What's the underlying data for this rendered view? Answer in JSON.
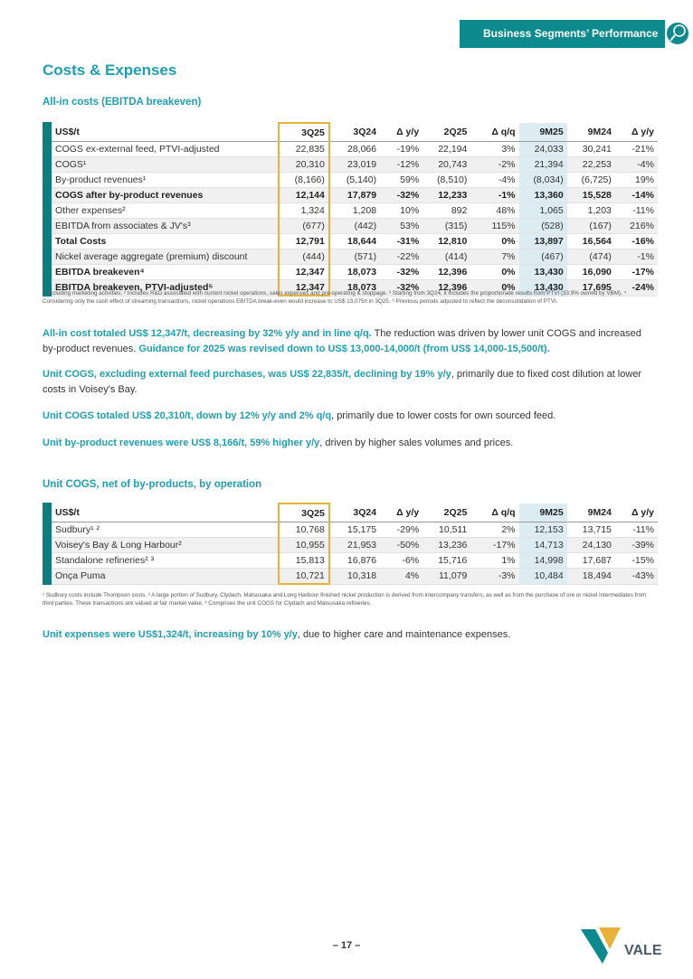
{
  "header": {
    "tag": "Business Segments’ Performance"
  },
  "title": "Costs & Expenses",
  "section1": {
    "subtitle": "All-in costs (EBITDA breakeven)",
    "table": {
      "columns": [
        "US$/t",
        "3Q25",
        "3Q24",
        "Δ y/y",
        "2Q25",
        "Δ q/q",
        "9M25",
        "9M24",
        "Δ y/y"
      ],
      "rows": [
        {
          "cells": [
            "COGS ex-external feed, PTVI-adjusted",
            "22,835",
            "28,066",
            "-19%",
            "22,194",
            "3%",
            "24,033",
            "30,241",
            "-21%"
          ]
        },
        {
          "cells": [
            "COGS¹",
            "20,310",
            "23,019",
            "-12%",
            "20,743",
            "-2%",
            "21,394",
            "22,253",
            "-4%"
          ]
        },
        {
          "cells": [
            "By-product revenues¹",
            "(8,166)",
            "(5,140)",
            "59%",
            "(8,510)",
            "-4%",
            "(8,034)",
            "(6,725)",
            "19%"
          ]
        },
        {
          "cells": [
            "COGS after by-product revenues",
            "12,144",
            "17,879",
            "-32%",
            "12,233",
            "-1%",
            "13,360",
            "15,528",
            "-14%"
          ],
          "bold": true
        },
        {
          "cells": [
            "Other expenses²",
            "1,324",
            "1,208",
            "10%",
            "892",
            "48%",
            "1,065",
            "1,203",
            "-11%"
          ]
        },
        {
          "cells": [
            "EBITDA from associates & JV's³",
            "(677)",
            "(442)",
            "53%",
            "(315)",
            "115%",
            "(528)",
            "(167)",
            "216%"
          ]
        },
        {
          "cells": [
            "Total Costs",
            "12,791",
            "18,644",
            "-31%",
            "12,810",
            "0%",
            "13,897",
            "16,564",
            "-16%"
          ],
          "bold": true
        },
        {
          "cells": [
            "Nickel average aggregate (premium) discount",
            "(444)",
            "(571)",
            "-22%",
            "(414)",
            "7%",
            "(467)",
            "(474)",
            "-1%"
          ]
        },
        {
          "cells": [
            "EBITDA breakeven⁴",
            "12,347",
            "18,073",
            "-32%",
            "12,396",
            "0%",
            "13,430",
            "16,090",
            "-17%"
          ],
          "bold": true
        },
        {
          "cells": [
            "EBITDA breakeven, PTVI-adjusted⁵",
            "12,347",
            "18,073",
            "-32%",
            "12,396",
            "0%",
            "13,430",
            "17,695",
            "-24%"
          ],
          "bold": true
        }
      ]
    },
    "footnote": "¹ Excluding marketing activities. ² Includes R&D associated with current nickel operations, sales expenses and pre-operating & stoppage. ³ Starting from 3Q24, it includes the proportionate results from PTVI (33.9% owned by VBM). ⁴ Considering only the cash effect of streaming transactions, nickel operations EBITDA break-even would increase to US$ 13,075/t in 3Q25. ⁵ Previous periods adjusted to reflect the deconsolidation of PTVI."
  },
  "paragraphs": [
    [
      {
        "text": "All-in cost totaled US$ 12,347/t, decreasing by 32% y/y and in line q/q.",
        "strong": true
      },
      {
        "text": " The reduction was driven by lower unit COGS and increased by-product revenues. "
      },
      {
        "text": "Guidance for 2025 was revised down to US$ 13,000-14,000/t (from US$ 14,000-15,500/t).",
        "strong": true
      }
    ],
    [
      {
        "text": "Unit COGS, excluding external feed purchases, was US$ 22,835/t, declining by 19% y/y",
        "strong": true
      },
      {
        "text": ", primarily due to fixed cost dilution at lower costs in Voisey's Bay."
      }
    ],
    [
      {
        "text": "Unit COGS totaled US$ 20,310/t, down by 12% y/y and 2% q/q",
        "strong": true
      },
      {
        "text": ", primarily due to lower costs for own sourced feed."
      }
    ],
    [
      {
        "text": "Unit by-product revenues were US$ 8,166/t, 59% higher y/y",
        "strong": true
      },
      {
        "text": ", driven by higher sales volumes and prices."
      }
    ]
  ],
  "section2": {
    "subtitle": "Unit COGS, net of by-products, by operation",
    "table": {
      "columns": [
        "US$/t",
        "3Q25",
        "3Q24",
        "Δ y/y",
        "2Q25",
        "Δ q/q",
        "9M25",
        "9M24",
        "Δ y/y"
      ],
      "rows": [
        {
          "cells": [
            "Sudbury¹ ²",
            "10,768",
            "15,175",
            "-29%",
            "10,511",
            "2%",
            "12,153",
            "13,715",
            "-11%"
          ]
        },
        {
          "cells": [
            "Voisey's Bay & Long Harbour²",
            "10,955",
            "21,953",
            "-50%",
            "13,236",
            "-17%",
            "14,713",
            "24,130",
            "-39%"
          ]
        },
        {
          "cells": [
            "Standalone refineries² ³",
            "15,813",
            "16,876",
            "-6%",
            "15,716",
            "1%",
            "14,998",
            "17,687",
            "-15%"
          ]
        },
        {
          "cells": [
            "Onça Puma",
            "10,721",
            "10,318",
            "4%",
            "11,079",
            "-3%",
            "10,484",
            "18,494",
            "-43%"
          ]
        }
      ]
    },
    "footnote": "¹ Sudbury costs include Thompson costs. ² A large portion of Sudbury, Clydach, Matsusaka and Long Harbour finished nickel production is derived from intercompany transfers, as well as from the purchase of ore or nickel intermediates from third parties. These transactions are valued at fair market value. ³ Comprises the unit COGS for Clydach and Matsusaka refineries."
  },
  "closing": [
    {
      "text": "Unit expenses were US$1,324/t, increasing by 10% y/y",
      "strong": true
    },
    {
      "text": ", due to higher care and maintenance expenses."
    }
  ],
  "page_number": "– 17 –",
  "logo": "VALE"
}
